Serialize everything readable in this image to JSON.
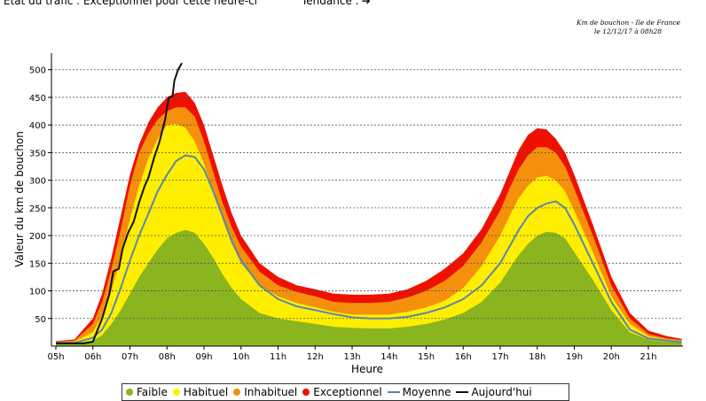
{
  "header": {
    "status_text": "État du trafic : Exceptionnel pour cette heure-ci",
    "tendance_text": "Tendance :",
    "caption_line1": "Km de bouchon - Ile de France",
    "caption_line2": "le 12/12/17 à 08h28"
  },
  "legend": {
    "items": [
      {
        "label": "Faible",
        "color": "#8ab51e",
        "kind": "dot"
      },
      {
        "label": "Habituel",
        "color": "#ffee00",
        "kind": "dot"
      },
      {
        "label": "Inhabituel",
        "color": "#f4900c",
        "kind": "dot"
      },
      {
        "label": "Exceptionnel",
        "color": "#ee1100",
        "kind": "dot"
      },
      {
        "label": "Moyenne",
        "color": "#5a88a8",
        "kind": "line"
      },
      {
        "label": "Aujourd'hui",
        "color": "#111111",
        "kind": "line"
      }
    ]
  },
  "chart_data": {
    "type": "area",
    "xlabel": "Heure",
    "ylabel": "Valeur du  km de bouchon",
    "x_ticks": [
      "05h",
      "06h",
      "07h",
      "08h",
      "09h",
      "10h",
      "11h",
      "12h",
      "13h",
      "14h",
      "15h",
      "16h",
      "17h",
      "18h",
      "19h",
      "20h",
      "21h"
    ],
    "y_ticks": [
      50,
      100,
      150,
      200,
      250,
      300,
      350,
      400,
      450,
      500
    ],
    "xlim": [
      5,
      22
    ],
    "ylim": [
      0,
      530
    ],
    "grid": true,
    "x": [
      5.0,
      5.5,
      6.0,
      6.25,
      6.5,
      6.75,
      7.0,
      7.25,
      7.5,
      7.75,
      8.0,
      8.25,
      8.5,
      8.75,
      9.0,
      9.25,
      9.5,
      9.75,
      10.0,
      10.5,
      11.0,
      11.5,
      12.0,
      12.5,
      13.0,
      13.5,
      14.0,
      14.5,
      15.0,
      15.5,
      16.0,
      16.5,
      17.0,
      17.25,
      17.5,
      17.75,
      18.0,
      18.25,
      18.5,
      18.75,
      19.0,
      19.5,
      20.0,
      20.5,
      21.0,
      21.5,
      21.9
    ],
    "series": [
      {
        "name": "Faible",
        "color": "#8ab51e",
        "values": [
          5,
          5,
          10,
          20,
          40,
          65,
          95,
          125,
          150,
          175,
          195,
          205,
          210,
          205,
          185,
          160,
          130,
          105,
          85,
          60,
          50,
          45,
          40,
          35,
          33,
          32,
          32,
          35,
          40,
          48,
          60,
          80,
          115,
          140,
          165,
          185,
          200,
          207,
          205,
          195,
          170,
          120,
          65,
          25,
          12,
          8,
          6
        ]
      },
      {
        "name": "Habituel",
        "color": "#ffee00",
        "values": [
          7,
          8,
          25,
          55,
          100,
          160,
          230,
          290,
          340,
          375,
          400,
          402,
          395,
          370,
          330,
          280,
          230,
          185,
          150,
          110,
          90,
          78,
          70,
          62,
          57,
          57,
          57,
          62,
          70,
          82,
          105,
          145,
          200,
          235,
          268,
          290,
          305,
          308,
          300,
          280,
          245,
          170,
          90,
          40,
          18,
          12,
          9
        ]
      },
      {
        "name": "Inhabituel",
        "color": "#f4900c",
        "values": [
          8,
          10,
          40,
          80,
          140,
          210,
          290,
          350,
          385,
          410,
          425,
          432,
          432,
          415,
          370,
          315,
          260,
          215,
          180,
          135,
          110,
          98,
          90,
          80,
          78,
          78,
          80,
          88,
          100,
          118,
          145,
          188,
          245,
          285,
          320,
          345,
          360,
          360,
          350,
          325,
          285,
          200,
          110,
          50,
          22,
          14,
          11
        ]
      },
      {
        "name": "Exceptionnel",
        "color": "#ee1100",
        "values": [
          9,
          12,
          50,
          95,
          160,
          235,
          310,
          365,
          405,
          432,
          450,
          458,
          460,
          440,
          400,
          345,
          290,
          240,
          200,
          150,
          125,
          110,
          103,
          95,
          93,
          93,
          95,
          103,
          118,
          140,
          168,
          212,
          275,
          315,
          355,
          382,
          394,
          392,
          375,
          350,
          310,
          220,
          125,
          60,
          28,
          18,
          13
        ]
      },
      {
        "name": "Moyenne",
        "color": "#5a88a8",
        "values": [
          6,
          6,
          15,
          30,
          60,
          105,
          155,
          200,
          240,
          280,
          310,
          335,
          345,
          342,
          320,
          280,
          235,
          190,
          155,
          110,
          85,
          72,
          65,
          58,
          52,
          50,
          50,
          53,
          60,
          70,
          85,
          110,
          150,
          180,
          210,
          235,
          250,
          258,
          262,
          250,
          220,
          150,
          80,
          30,
          14,
          10,
          7
        ]
      }
    ],
    "today": {
      "name": "Aujourd'hui",
      "color": "#111111",
      "x": [
        5.0,
        5.75,
        6.0,
        6.1,
        6.25,
        6.45,
        6.55,
        6.7,
        6.8,
        6.95,
        7.1,
        7.25,
        7.4,
        7.5,
        7.65,
        7.8,
        7.95,
        8.05,
        8.15,
        8.2,
        8.3,
        8.4
      ],
      "values": [
        5,
        5,
        8,
        25,
        50,
        95,
        135,
        140,
        175,
        205,
        225,
        260,
        290,
        305,
        340,
        370,
        410,
        450,
        452,
        480,
        500,
        512
      ]
    }
  }
}
